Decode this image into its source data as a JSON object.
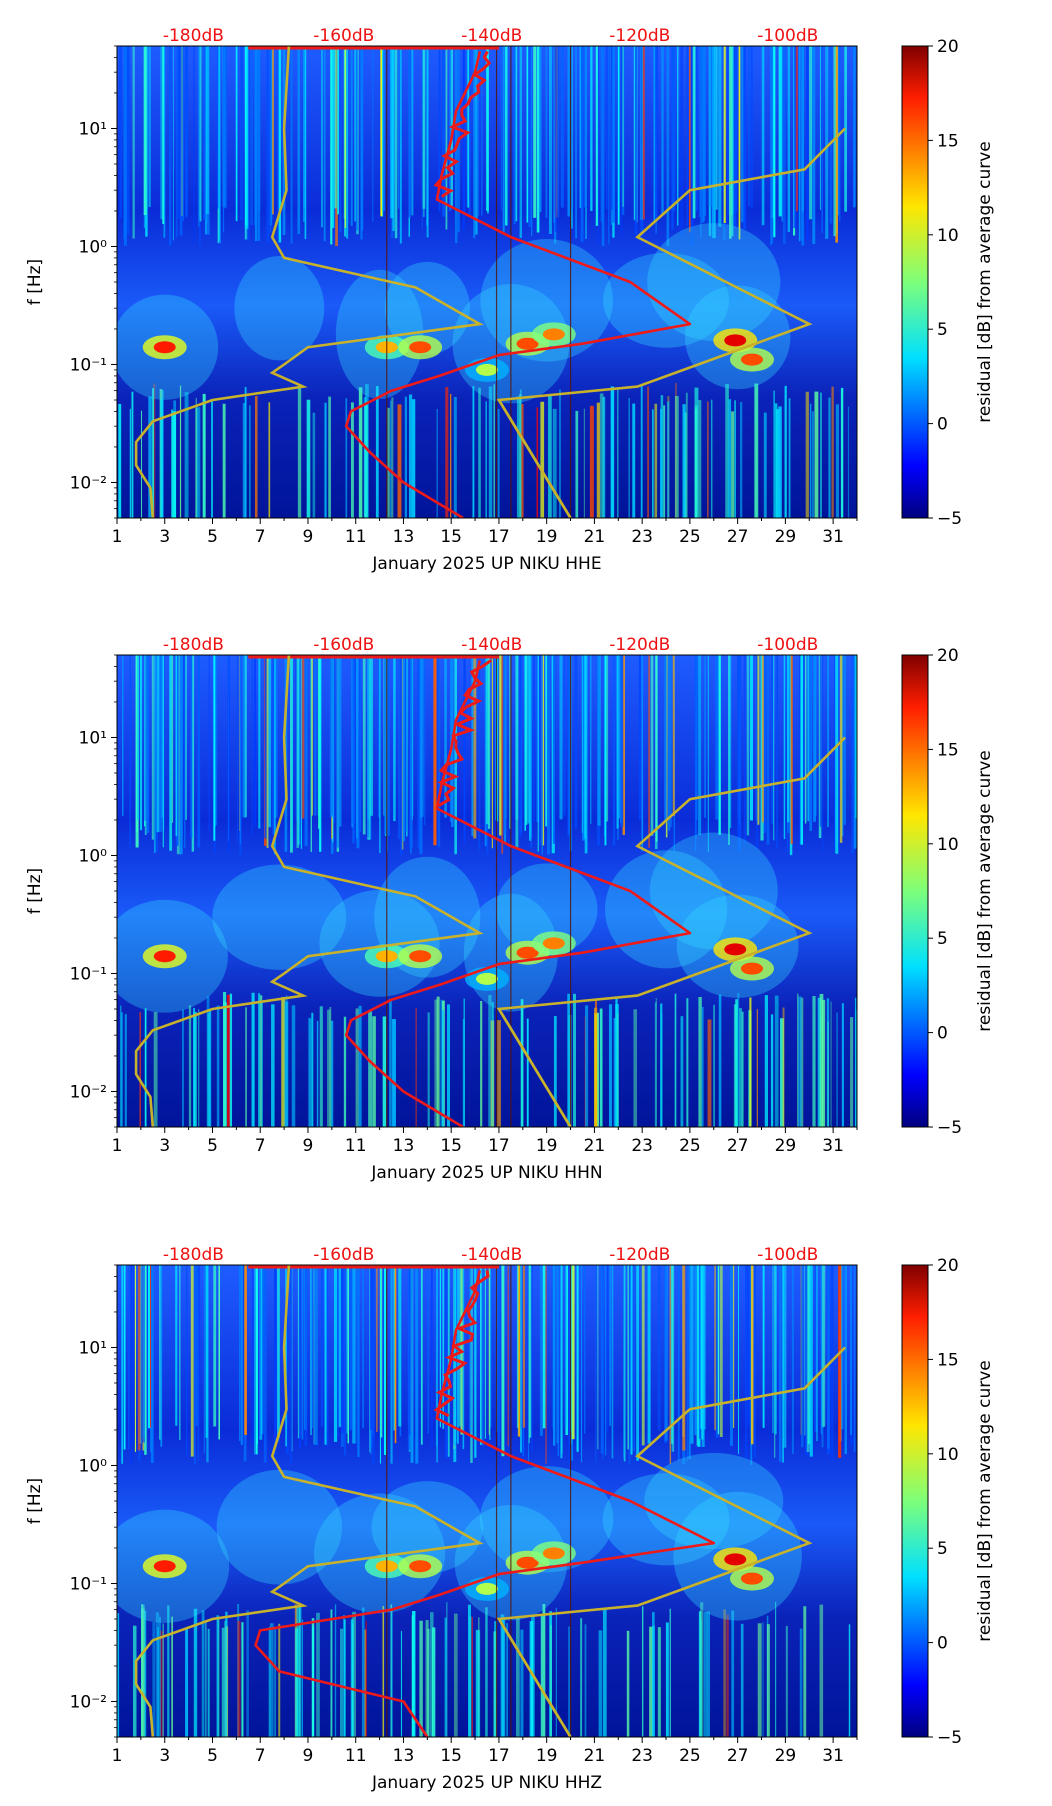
{
  "chart_data": [
    {
      "type": "heatmap",
      "xlabel": "January 2025 UP NIKU  HHE",
      "ylabel": "f [Hz]",
      "colorbar_label": "residual [dB] from average curve",
      "xticks": [
        "1",
        "3",
        "5",
        "7",
        "9",
        "11",
        "13",
        "15",
        "17",
        "19",
        "21",
        "23",
        "25",
        "27",
        "29",
        "31"
      ],
      "xlim": [
        1,
        32
      ],
      "ylim": [
        0.005,
        50
      ],
      "yticks": [
        "10⁻²",
        "10⁻¹",
        "10⁰",
        "10¹"
      ],
      "colorbar_range": [
        -5,
        20
      ],
      "colorbar_ticks": [
        "20",
        "15",
        "10",
        "5",
        "0",
        "−5"
      ],
      "db_scale_labels": [
        "-180dB",
        "-160dB",
        "-140dB",
        "-120dB",
        "-100dB"
      ],
      "red_curve_min_day": 10.8,
      "red_curve_peak_day": 25.0,
      "red_curve_low_day": 15.5
    },
    {
      "type": "heatmap",
      "xlabel": "January 2025 UP NIKU  HHN",
      "ylabel": "f [Hz]",
      "colorbar_label": "residual [dB] from average curve",
      "xticks": [
        "1",
        "3",
        "5",
        "7",
        "9",
        "11",
        "13",
        "15",
        "17",
        "19",
        "21",
        "23",
        "25",
        "27",
        "29",
        "31"
      ],
      "xlim": [
        1,
        32
      ],
      "ylim": [
        0.005,
        50
      ],
      "yticks": [
        "10⁻²",
        "10⁻¹",
        "10⁰",
        "10¹"
      ],
      "colorbar_range": [
        -5,
        20
      ],
      "colorbar_ticks": [
        "20",
        "15",
        "10",
        "5",
        "0",
        "−5"
      ],
      "db_scale_labels": [
        "-180dB",
        "-160dB",
        "-140dB",
        "-120dB",
        "-100dB"
      ],
      "red_curve_min_day": 10.8,
      "red_curve_peak_day": 25.0,
      "red_curve_low_day": 15.5
    },
    {
      "type": "heatmap",
      "xlabel": "January 2025 UP NIKU  HHZ",
      "ylabel": "f [Hz]",
      "colorbar_label": "residual [dB] from average curve",
      "xticks": [
        "1",
        "3",
        "5",
        "7",
        "9",
        "11",
        "13",
        "15",
        "17",
        "19",
        "21",
        "23",
        "25",
        "27",
        "29",
        "31"
      ],
      "xlim": [
        1,
        32
      ],
      "ylim": [
        0.005,
        50
      ],
      "yticks": [
        "10⁻²",
        "10⁻¹",
        "10⁰",
        "10¹"
      ],
      "colorbar_range": [
        -5,
        20
      ],
      "colorbar_ticks": [
        "20",
        "15",
        "10",
        "5",
        "0",
        "−5"
      ],
      "db_scale_labels": [
        "-180dB",
        "-160dB",
        "-140dB",
        "-120dB",
        "-100dB"
      ],
      "red_curve_min_day": 7.0,
      "red_curve_peak_day": 26.0,
      "red_curve_low_day": 14.0
    }
  ],
  "colors": {
    "red_curve": "#ee1a1a",
    "yellow_curve": "#c8b22c",
    "db_label": "#ee1111",
    "background_blue": "#1450ff"
  }
}
